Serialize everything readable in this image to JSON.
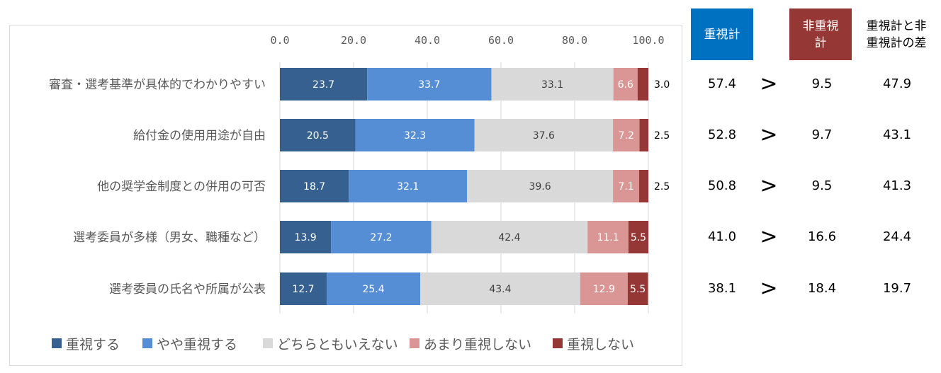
{
  "chart_data": {
    "type": "bar",
    "orientation": "horizontal-stacked-100",
    "categories": [
      "審査・選考基準が具体的でわかりやすい",
      "給付金の使用用途が自由",
      "他の奨学金制度との併用の可否",
      "選考委員が多様（男女、職種など）",
      "選考委員の氏名や所属が公表"
    ],
    "series": [
      {
        "name": "重視する",
        "color": "#35608F",
        "label_color": "#ffffff",
        "values": [
          23.7,
          20.5,
          18.7,
          13.9,
          12.7
        ]
      },
      {
        "name": "やや重視する",
        "color": "#558ED5",
        "label_color": "#ffffff",
        "values": [
          33.7,
          32.3,
          32.1,
          27.2,
          25.4
        ]
      },
      {
        "name": "どちらともいえない",
        "color": "#D9D9D9",
        "label_color": "#404040",
        "values": [
          33.1,
          37.6,
          39.6,
          42.4,
          43.4
        ]
      },
      {
        "name": "あまり重視しない",
        "color": "#D99694",
        "label_color": "#ffffff",
        "values": [
          6.6,
          7.2,
          7.1,
          11.1,
          12.9
        ]
      },
      {
        "name": "重視しない",
        "color": "#953735",
        "label_color": "#ffffff",
        "values": [
          3.0,
          2.5,
          2.5,
          5.5,
          5.5
        ]
      }
    ],
    "outside_labels": [
      "3.0",
      "2.5",
      "2.5",
      "",
      ""
    ],
    "inside_last_labels": [
      "",
      "",
      "",
      "5.5",
      "5.5"
    ],
    "xlim": [
      0,
      100
    ],
    "x_ticks": [
      "0.0",
      "20.0",
      "40.0",
      "60.0",
      "80.0",
      "100.0"
    ],
    "grid": true,
    "legend_position": "bottom",
    "title": "",
    "xlabel": "",
    "ylabel": ""
  },
  "summary": {
    "headers": {
      "important": {
        "line1": "重視計",
        "line2": "",
        "color": "#0070C0"
      },
      "not_important": {
        "line1": "非重視",
        "line2": "計",
        "color": "#953735"
      },
      "difference": {
        "line1": "重視計と非",
        "line2": "重視計の差"
      }
    },
    "comparator": ">",
    "rows": [
      {
        "important": "57.4",
        "not_important": "9.5",
        "difference": "47.9"
      },
      {
        "important": "52.8",
        "not_important": "9.7",
        "difference": "43.1"
      },
      {
        "important": "50.8",
        "not_important": "9.5",
        "difference": "41.3"
      },
      {
        "important": "41.0",
        "not_important": "16.6",
        "difference": "24.4"
      },
      {
        "important": "38.1",
        "not_important": "18.4",
        "difference": "19.7"
      }
    ]
  }
}
